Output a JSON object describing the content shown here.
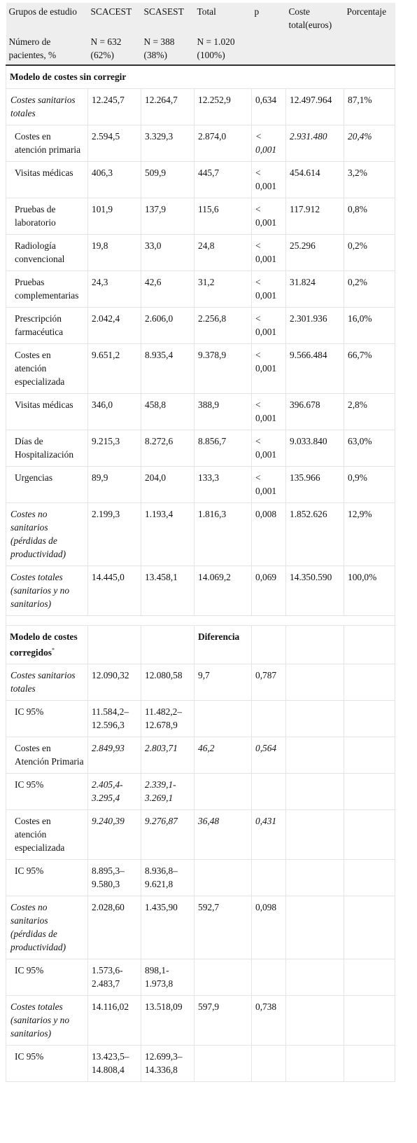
{
  "table": {
    "header": [
      [
        "Grupos de estudio",
        "SCACEST",
        "SCASEST",
        "Total",
        "p",
        "Coste total(euros)",
        "Porcentaje"
      ],
      [
        "Número de pacientes, %",
        "N = 632 (62%)",
        "N = 388 (38%)",
        "N = 1.020 (100%)",
        null,
        null,
        null
      ]
    ],
    "sections": [
      {
        "title": "Modelo de costes sin corregir",
        "rows": [
          [
            "Costes sanitarios totales",
            "12.245,7",
            "12.264,7",
            "12.252,9",
            "0,634",
            "12.497.964",
            "87,1%"
          ],
          [
            "Costes en atención primaria",
            "2.594,5",
            "3.329,3",
            "2.874,0",
            "< 0,001",
            "2.931.480",
            "20,4%"
          ],
          [
            "Visitas médicas",
            "406,3",
            "509,9",
            "445,7",
            "< 0,001",
            "454.614",
            "3,2%"
          ],
          [
            "Pruebas de laboratorio",
            "101,9",
            "137,9",
            "115,6",
            "< 0,001",
            "117.912",
            "0,8%"
          ],
          [
            "Radiología convencional",
            "19,8",
            "33,0",
            "24,8",
            "< 0,001",
            "25.296",
            "0,2%"
          ],
          [
            "Pruebas complementarias",
            "24,3",
            "42,6",
            "31,2",
            "< 0,001",
            "31.824",
            "0,2%"
          ],
          [
            "Prescripción farmacéutica",
            "2.042,4",
            "2.606,0",
            "2.256,8",
            "< 0,001",
            "2.301.936",
            "16,0%"
          ],
          [
            "Costes en atención especializada",
            "9.651,2",
            "8.935,4",
            "9.378,9",
            "< 0,001",
            "9.566.484",
            "66,7%"
          ],
          [
            "Visitas médicas",
            "346,0",
            "458,8",
            "388,9",
            "< 0,001",
            "396.678",
            "2,8%"
          ],
          [
            "Días de Hospitalización",
            "9.215,3",
            "8.272,6",
            "8.856,7",
            "< 0,001",
            "9.033.840",
            "63,0%"
          ],
          [
            "Urgencias",
            "89,9",
            "204,0",
            "133,3",
            "< 0,001",
            "135.966",
            "0,9%"
          ],
          [
            "Costes no sanitarios (pérdidas de productividad)",
            "2.199,3",
            "1.193,4",
            "1.816,3",
            "0,008",
            "1.852.626",
            "12,9%"
          ],
          [
            "Costes totales (sanitarios y no sanitarios)",
            "14.445,0",
            "13.458,1",
            "14.069,2",
            "0,069",
            "14.350.590",
            "100,0%"
          ]
        ]
      },
      {
        "header": [
          "Modelo de costes corregidos",
          null,
          null,
          "Diferencia",
          null,
          null,
          null
        ],
        "title_mark": "*",
        "rows": [
          [
            "Costes sanitarios totales",
            "12.090,32",
            "12.080,58",
            "9,7",
            "0,787",
            null,
            null
          ],
          [
            "IC 95%",
            "11.584,2–12.596,3",
            "11.482,2–12.678,9",
            null,
            null,
            null,
            null
          ],
          [
            "Costes en Atención Primaria",
            "2.849,93",
            "2.803,71",
            "46,2",
            "0,564",
            null,
            null
          ],
          [
            "IC 95%",
            "2.405,4-3.295,4",
            "2.339,1-3.269,1",
            null,
            null,
            null,
            null
          ],
          [
            "Costes en atención especializada",
            "9.240,39",
            "9.276,87",
            "36,48",
            "0,431",
            null,
            null
          ],
          [
            "IC 95%",
            "8.895,3–9.580,3",
            "8.936,8–9.621,8",
            null,
            null,
            null,
            null
          ],
          [
            "Costes no sanitarios (pérdidas de productividad)",
            "2.028,60",
            "1.435,90",
            "592,7",
            "0,098",
            null,
            null
          ],
          [
            "IC 95%",
            "1.573,6-2.483,7",
            "898,1-1.973,8",
            null,
            null,
            null,
            null
          ],
          [
            "Costes totales (sanitarios y no sanitarios)",
            "14.116,02",
            "13.518,09",
            "597,9",
            "0,738",
            null,
            null
          ],
          [
            "IC 95%",
            "13.423,5–14.808,4",
            "12.699,3–14.336,8",
            null,
            null,
            null,
            null
          ]
        ]
      }
    ]
  }
}
